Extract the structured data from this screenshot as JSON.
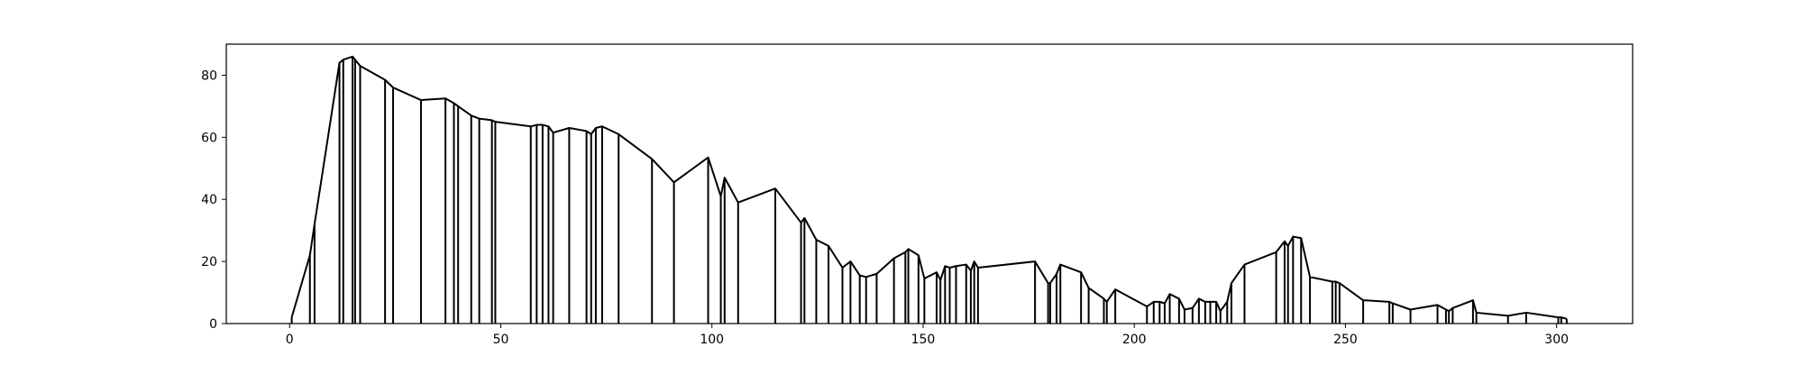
{
  "chart_data": {
    "type": "line",
    "title": "",
    "xlabel": "",
    "ylabel": "",
    "xlim": [
      -15,
      318
    ],
    "ylim": [
      0,
      90
    ],
    "xticks": [
      0,
      50,
      100,
      150,
      200,
      250,
      300
    ],
    "yticks": [
      0,
      20,
      40,
      60,
      80
    ],
    "grid": false,
    "legend": "none",
    "style": "line with vertical drop lines to the baseline at every point",
    "line_color": "#000000",
    "series": [
      {
        "name": "",
        "x": [
          0.5,
          4.8,
          5.9,
          11.8,
          12.7,
          14.9,
          15.5,
          16.7,
          22.6,
          24.5,
          31.1,
          36.9,
          38.9,
          39.9,
          43.0,
          44.9,
          47.9,
          48.7,
          57.1,
          58.5,
          59.9,
          61.3,
          62.4,
          66.2,
          70.3,
          71.4,
          72.5,
          74.0,
          77.9,
          85.8,
          91.0,
          99.1,
          102.1,
          103.0,
          106.2,
          115.0,
          121.1,
          121.9,
          124.7,
          127.6,
          130.9,
          132.8,
          135.0,
          136.5,
          139.0,
          143.1,
          145.8,
          146.5,
          148.9,
          150.3,
          153.2,
          154.1,
          155.2,
          156.3,
          157.8,
          160.2,
          161.3,
          162.1,
          163.0,
          176.5,
          179.6,
          180.1,
          181.6,
          182.5,
          187.4,
          189.2,
          192.8,
          193.5,
          195.5,
          203.0,
          204.6,
          206.0,
          207.2,
          208.4,
          210.6,
          211.9,
          213.8,
          215.3,
          216.8,
          218.0,
          219.4,
          220.4,
          222.0,
          223.0,
          226.1,
          233.6,
          235.6,
          236.4,
          237.6,
          239.5,
          241.6,
          246.9,
          247.7,
          248.6,
          254.2,
          260.4,
          261.2,
          265.4,
          271.8,
          273.8,
          274.5,
          275.4,
          280.2,
          281.0,
          288.5,
          292.8,
          300.4,
          301.1,
          302.4
        ],
        "y": [
          2.0,
          22.0,
          32.0,
          84.0,
          85.0,
          86.0,
          85.0,
          83.0,
          78.5,
          76.0,
          72.0,
          72.5,
          71.0,
          70.0,
          67.0,
          66.0,
          65.5,
          65.0,
          63.5,
          64.0,
          64.0,
          63.5,
          61.5,
          63.0,
          62.0,
          61.0,
          63.0,
          63.5,
          61.0,
          53.0,
          45.5,
          53.5,
          41.0,
          47.0,
          39.0,
          43.5,
          32.5,
          34.0,
          27.0,
          25.0,
          18.0,
          20.0,
          15.5,
          15.0,
          16.0,
          21.0,
          23.0,
          24.0,
          22.0,
          14.5,
          16.5,
          14.0,
          18.5,
          18.0,
          18.5,
          19.0,
          17.0,
          20.0,
          18.0,
          20.0,
          13.0,
          13.0,
          16.0,
          19.0,
          16.5,
          11.5,
          8.0,
          7.0,
          11.0,
          5.5,
          7.0,
          7.0,
          6.5,
          9.5,
          8.0,
          4.5,
          5.0,
          8.0,
          7.0,
          7.0,
          7.0,
          4.0,
          7.0,
          13.0,
          19.0,
          23.0,
          26.5,
          25.0,
          28.0,
          27.5,
          15.0,
          13.5,
          13.5,
          13.0,
          7.5,
          7.0,
          6.5,
          4.5,
          6.0,
          4.5,
          4.0,
          5.0,
          7.5,
          3.5,
          2.5,
          3.5,
          2.0,
          2.0,
          1.5
        ]
      }
    ]
  }
}
